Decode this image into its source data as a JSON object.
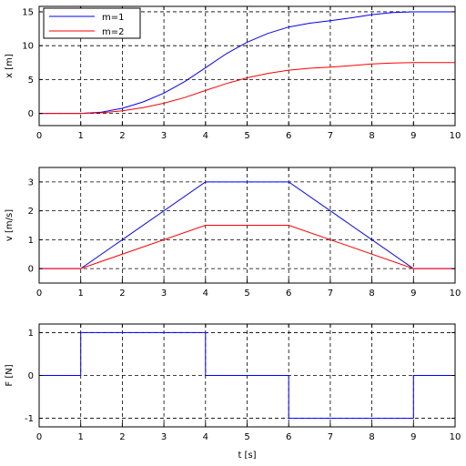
{
  "chart_data": [
    {
      "type": "line",
      "ylabel": "x [m]",
      "xlim": [
        0,
        10
      ],
      "ylim": [
        -1.8,
        15.8
      ],
      "xticks": [
        "0",
        "1",
        "2",
        "3",
        "4",
        "5",
        "6",
        "7",
        "8",
        "9",
        "10"
      ],
      "yticks": [
        "0",
        "5",
        "10",
        "15"
      ],
      "ytick_values": [
        0,
        5,
        10,
        15
      ],
      "grid": true,
      "legend": "top-left",
      "series": [
        {
          "name": "m=1",
          "color": "#0000ff",
          "x": [
            0,
            1,
            1.5,
            2,
            2.5,
            3,
            3.5,
            4,
            4.5,
            5,
            5.5,
            6,
            6.5,
            7,
            7.5,
            8,
            8.5,
            9,
            10
          ],
          "y": [
            0,
            0,
            0.19,
            0.75,
            1.69,
            3,
            4.69,
            6.75,
            8.81,
            10.5,
            11.81,
            12.75,
            13.31,
            13.69,
            14.11,
            14.58,
            14.89,
            15,
            15
          ]
        },
        {
          "name": "m=2",
          "color": "#ff0000",
          "x": [
            0,
            1,
            1.5,
            2,
            2.5,
            3,
            3.5,
            4,
            4.5,
            5,
            5.5,
            6,
            6.5,
            7,
            7.5,
            8,
            8.5,
            9,
            10
          ],
          "y": [
            0,
            0,
            0.09,
            0.38,
            0.84,
            1.5,
            2.34,
            3.38,
            4.41,
            5.25,
            5.91,
            6.38,
            6.66,
            6.84,
            7.05,
            7.29,
            7.45,
            7.5,
            7.5
          ]
        }
      ]
    },
    {
      "type": "line",
      "ylabel": "v [m/s]",
      "xlim": [
        0,
        10
      ],
      "ylim": [
        -0.5,
        3.5
      ],
      "xticks": [
        "0",
        "1",
        "2",
        "3",
        "4",
        "5",
        "6",
        "7",
        "8",
        "9",
        "10"
      ],
      "yticks": [
        "0",
        "1",
        "2",
        "3"
      ],
      "ytick_values": [
        0,
        1,
        2,
        3
      ],
      "grid": true,
      "series": [
        {
          "color": "#0000ff",
          "x": [
            0,
            1,
            4,
            6,
            9,
            10
          ],
          "y": [
            0,
            0,
            3,
            3,
            0,
            0
          ]
        },
        {
          "color": "#ff0000",
          "x": [
            0,
            1,
            4,
            6,
            9,
            10
          ],
          "y": [
            0,
            0,
            1.5,
            1.5,
            0,
            0
          ]
        }
      ]
    },
    {
      "type": "line",
      "xlabel": "t [s]",
      "ylabel": "F [N]",
      "xlim": [
        0,
        10
      ],
      "ylim": [
        -1.2,
        1.2
      ],
      "xticks": [
        "0",
        "1",
        "2",
        "3",
        "4",
        "5",
        "6",
        "7",
        "8",
        "9",
        "10"
      ],
      "yticks": [
        "-1",
        "0",
        "1"
      ],
      "ytick_values": [
        -1,
        0,
        1
      ],
      "grid": true,
      "series": [
        {
          "color": "#0000ff",
          "x": [
            0,
            1,
            1,
            4,
            4,
            6,
            6,
            9,
            9,
            10
          ],
          "y": [
            0,
            0,
            1,
            1,
            0,
            0,
            -1,
            -1,
            0,
            0
          ]
        }
      ]
    }
  ]
}
